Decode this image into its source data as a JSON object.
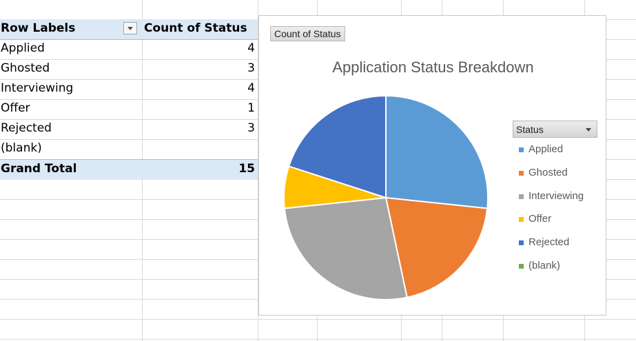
{
  "pivot": {
    "header": {
      "row_labels": "Row Labels",
      "count_label": "Count of Status"
    },
    "rows": [
      {
        "label": "Applied",
        "value": "4"
      },
      {
        "label": "Ghosted",
        "value": "3"
      },
      {
        "label": "Interviewing",
        "value": "4"
      },
      {
        "label": "Offer",
        "value": "1"
      },
      {
        "label": "Rejected",
        "value": "3"
      },
      {
        "label": "(blank)",
        "value": ""
      }
    ],
    "total": {
      "label": "Grand Total",
      "value": "15"
    }
  },
  "chart": {
    "field_button": "Count of Status",
    "title": "Application Status Breakdown",
    "legend_button": "Status",
    "legend": [
      {
        "label": "Applied",
        "color": "#5b9bd5"
      },
      {
        "label": "Ghosted",
        "color": "#ed7d31"
      },
      {
        "label": "Interviewing",
        "color": "#a5a5a5"
      },
      {
        "label": "Offer",
        "color": "#ffc000"
      },
      {
        "label": "Rejected",
        "color": "#4472c4"
      },
      {
        "label": "(blank)",
        "color": "#70ad47"
      }
    ]
  },
  "chart_data": {
    "type": "pie",
    "title": "Application Status Breakdown",
    "categories": [
      "Applied",
      "Ghosted",
      "Interviewing",
      "Offer",
      "Rejected",
      "(blank)"
    ],
    "values": [
      4,
      3,
      4,
      1,
      3,
      0
    ],
    "colors": [
      "#5b9bd5",
      "#ed7d31",
      "#a5a5a5",
      "#ffc000",
      "#4472c4",
      "#70ad47"
    ],
    "legend_position": "right"
  }
}
